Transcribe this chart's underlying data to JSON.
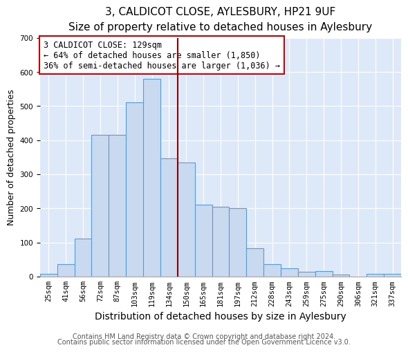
{
  "title1": "3, CALDICOT CLOSE, AYLESBURY, HP21 9UF",
  "title2": "Size of property relative to detached houses in Aylesbury",
  "xlabel": "Distribution of detached houses by size in Aylesbury",
  "ylabel": "Number of detached properties",
  "categories": [
    "25sqm",
    "41sqm",
    "56sqm",
    "72sqm",
    "87sqm",
    "103sqm",
    "119sqm",
    "134sqm",
    "150sqm",
    "165sqm",
    "181sqm",
    "197sqm",
    "212sqm",
    "228sqm",
    "243sqm",
    "259sqm",
    "275sqm",
    "290sqm",
    "306sqm",
    "321sqm",
    "337sqm"
  ],
  "values": [
    8,
    37,
    112,
    415,
    416,
    510,
    580,
    347,
    335,
    210,
    205,
    200,
    83,
    37,
    23,
    13,
    15,
    5,
    0,
    8,
    8
  ],
  "bar_color": "#c9d9f0",
  "bar_edge_color": "#5b9bd5",
  "vline_pos": 7.5,
  "vline_color": "#8b0000",
  "annotation_text": "3 CALDICOT CLOSE: 129sqm\n← 64% of detached houses are smaller (1,850)\n36% of semi-detached houses are larger (1,036) →",
  "annotation_box_color": "#ffffff",
  "annotation_box_edge_color": "#cc0000",
  "ylim": [
    0,
    700
  ],
  "yticks": [
    0,
    100,
    200,
    300,
    400,
    500,
    600,
    700
  ],
  "bg_color": "#dde8f8",
  "footnote1": "Contains HM Land Registry data © Crown copyright and database right 2024.",
  "footnote2": "Contains public sector information licensed under the Open Government Licence v3.0.",
  "title1_fontsize": 11,
  "title2_fontsize": 9.5,
  "xlabel_fontsize": 10,
  "ylabel_fontsize": 9,
  "tick_fontsize": 7.5,
  "annotation_fontsize": 8.5,
  "footnote_fontsize": 7
}
